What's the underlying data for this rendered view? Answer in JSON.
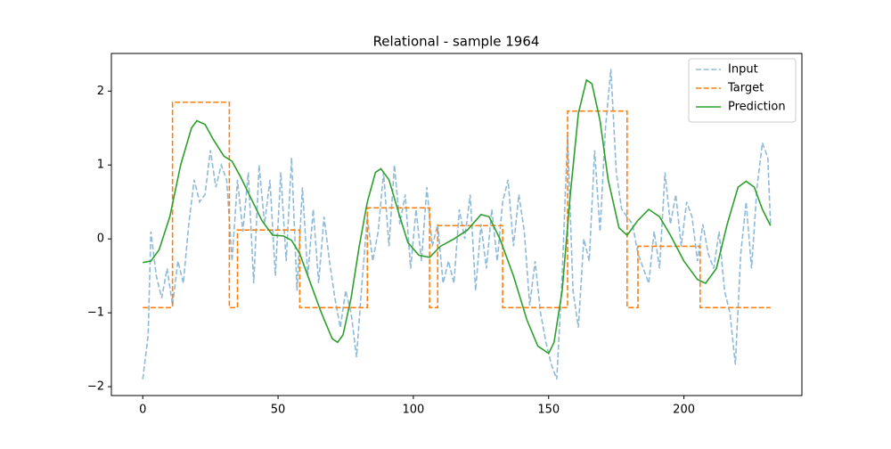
{
  "chart_data": {
    "type": "line",
    "title": "Relational - sample 1964",
    "xlim": [
      -11.6,
      243.6
    ],
    "ylim": [
      -2.12,
      2.51
    ],
    "xticks": [
      0,
      50,
      100,
      150,
      200
    ],
    "yticks": [
      {
        "value": -2,
        "label": "−2"
      },
      {
        "value": -1,
        "label": "−1"
      },
      0,
      1,
      2
    ],
    "legend": "upper right",
    "series": [
      {
        "name": "Input",
        "color": "#1f77b4",
        "opacity": 0.5,
        "linestyle": "dashed",
        "x": [
          0,
          2,
          3,
          5,
          7,
          9,
          11,
          13,
          15,
          17,
          19,
          21,
          23,
          25,
          27,
          29,
          31,
          33,
          35,
          37,
          39,
          41,
          43,
          45,
          47,
          49,
          51,
          53,
          55,
          57,
          59,
          61,
          63,
          65,
          67,
          69,
          71,
          73,
          75,
          77,
          79,
          81,
          83,
          85,
          87,
          89,
          91,
          93,
          95,
          97,
          99,
          101,
          103,
          105,
          107,
          109,
          111,
          113,
          115,
          117,
          119,
          121,
          123,
          125,
          127,
          129,
          131,
          133,
          135,
          137,
          139,
          141,
          143,
          145,
          147,
          149,
          151,
          153,
          155,
          157,
          159,
          161,
          163,
          165,
          167,
          169,
          171,
          173,
          175,
          177,
          179,
          181,
          183,
          185,
          187,
          189,
          191,
          193,
          195,
          197,
          199,
          201,
          203,
          205,
          207,
          209,
          211,
          213,
          215,
          217,
          219,
          221,
          223,
          225,
          227,
          229,
          231,
          232
        ],
        "values": [
          -1.9,
          -1.3,
          0.1,
          -0.5,
          -0.8,
          -0.4,
          -0.9,
          -0.3,
          -0.6,
          0.2,
          0.8,
          0.5,
          0.6,
          1.2,
          0.7,
          1.0,
          0.8,
          -0.3,
          0.8,
          0.1,
          0.9,
          -0.6,
          1.0,
          0.2,
          0.8,
          -0.5,
          0.9,
          -0.3,
          1.1,
          -0.7,
          0.7,
          -0.5,
          0.4,
          -0.6,
          0.3,
          -0.3,
          -0.8,
          -1.2,
          -0.7,
          -1.0,
          -1.6,
          -0.6,
          0.3,
          -0.3,
          0.1,
          0.9,
          -0.1,
          1.0,
          0.2,
          0.6,
          -0.4,
          0.4,
          -0.3,
          0.7,
          -0.1,
          0.2,
          -0.6,
          -0.3,
          -0.6,
          0.4,
          0.0,
          0.6,
          -0.7,
          0.2,
          -0.4,
          0.4,
          -0.3,
          0.5,
          0.8,
          -0.1,
          0.6,
          0.1,
          -0.9,
          -0.3,
          -1.0,
          -1.4,
          -1.7,
          -1.9,
          -0.5,
          1.4,
          -0.7,
          -1.2,
          0.0,
          -0.3,
          1.2,
          0.1,
          1.5,
          2.3,
          0.9,
          0.4,
          0.3,
          0.2,
          -0.2,
          -0.4,
          -0.6,
          0.1,
          -0.4,
          0.9,
          0.2,
          0.6,
          -0.1,
          0.5,
          0.3,
          -0.3,
          0.2,
          -0.2,
          -0.4,
          0.1,
          -0.7,
          -1.0,
          -1.7,
          -0.2,
          0.5,
          -0.4,
          0.7,
          1.3,
          1.1,
          0.2
        ]
      },
      {
        "name": "Target",
        "color": "#ff7f0e",
        "opacity": 1,
        "linestyle": "dashed",
        "x": [
          0,
          11,
          11,
          32,
          32,
          35,
          35,
          58,
          58,
          83,
          83,
          106,
          106,
          109,
          109,
          133,
          133,
          157,
          157,
          179,
          179,
          183,
          183,
          206,
          206,
          232
        ],
        "values": [
          -0.93,
          -0.93,
          1.85,
          1.85,
          -0.93,
          -0.93,
          0.12,
          0.12,
          -0.93,
          -0.93,
          0.42,
          0.42,
          -0.93,
          -0.93,
          0.18,
          0.18,
          -0.93,
          -0.93,
          1.73,
          1.73,
          -0.93,
          -0.93,
          -0.1,
          -0.1,
          -0.93,
          -0.93
        ]
      },
      {
        "name": "Prediction",
        "color": "#2ca02c",
        "opacity": 1,
        "linestyle": "solid",
        "x": [
          0,
          3,
          6,
          10,
          14,
          18,
          20,
          23,
          26,
          30,
          33,
          36,
          40,
          44,
          48,
          52,
          55,
          58,
          62,
          66,
          70,
          72,
          74,
          77,
          80,
          83,
          86,
          88,
          91,
          95,
          98,
          102,
          106,
          110,
          115,
          120,
          125,
          128,
          132,
          137,
          142,
          146,
          150,
          152,
          155,
          158,
          161,
          164,
          166,
          169,
          172,
          176,
          179,
          183,
          187,
          191,
          195,
          200,
          205,
          208,
          212,
          216,
          220,
          223,
          226,
          229,
          232
        ],
        "values": [
          -0.32,
          -0.3,
          -0.15,
          0.3,
          1.0,
          1.5,
          1.6,
          1.55,
          1.35,
          1.12,
          1.05,
          0.85,
          0.55,
          0.25,
          0.05,
          0.04,
          -0.02,
          -0.2,
          -0.6,
          -1.0,
          -1.35,
          -1.4,
          -1.3,
          -0.8,
          -0.1,
          0.5,
          0.9,
          0.95,
          0.8,
          0.3,
          -0.05,
          -0.22,
          -0.25,
          -0.1,
          0.0,
          0.12,
          0.33,
          0.3,
          0.0,
          -0.5,
          -1.1,
          -1.45,
          -1.55,
          -1.4,
          -0.7,
          0.6,
          1.7,
          2.15,
          2.1,
          1.6,
          0.8,
          0.15,
          0.05,
          0.25,
          0.4,
          0.3,
          0.05,
          -0.3,
          -0.55,
          -0.6,
          -0.4,
          0.2,
          0.7,
          0.78,
          0.7,
          0.4,
          0.18
        ]
      }
    ]
  }
}
